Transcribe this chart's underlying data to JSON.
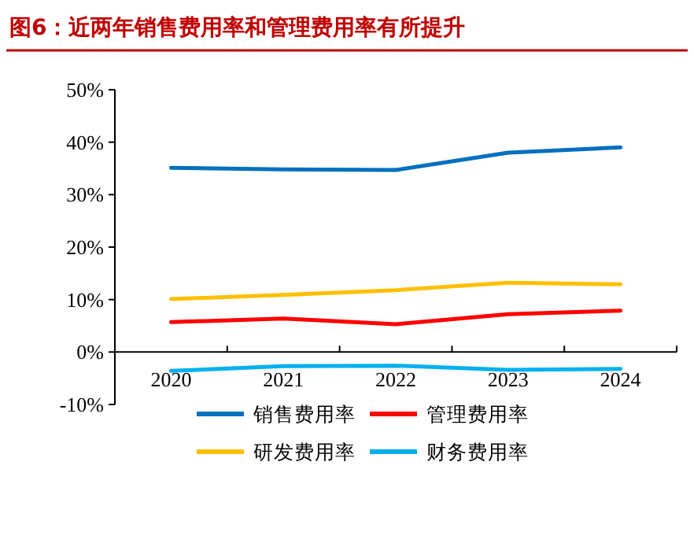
{
  "chart_data": {
    "type": "line",
    "title": "图6：近两年销售费用率和管理费用率有所提升",
    "categories": [
      "2020",
      "2021",
      "2022",
      "2023",
      "2024"
    ],
    "series": [
      {
        "name": "销售费用率",
        "color": "#0070c0",
        "values": [
          35.1,
          34.8,
          34.7,
          38.0,
          39.0
        ]
      },
      {
        "name": "管理费用率",
        "color": "#ff0000",
        "values": [
          5.7,
          6.4,
          5.3,
          7.2,
          7.9
        ]
      },
      {
        "name": "研发费用率",
        "color": "#ffc000",
        "values": [
          10.1,
          10.9,
          11.8,
          13.2,
          12.9
        ]
      },
      {
        "name": "财务费用率",
        "color": "#00b0f0",
        "values": [
          -3.6,
          -2.7,
          -2.6,
          -3.4,
          -3.2
        ]
      }
    ],
    "ylim": [
      -10,
      50
    ],
    "yticks": [
      {
        "value": -10,
        "label": "-10%"
      },
      {
        "value": 0,
        "label": "0%"
      },
      {
        "value": 10,
        "label": "10%"
      },
      {
        "value": 20,
        "label": "20%"
      },
      {
        "value": 30,
        "label": "30%"
      },
      {
        "value": 40,
        "label": "40%"
      },
      {
        "value": 50,
        "label": "50%"
      }
    ],
    "grid": false,
    "legend": "bottom",
    "marker": "none",
    "line_style": "solid"
  }
}
